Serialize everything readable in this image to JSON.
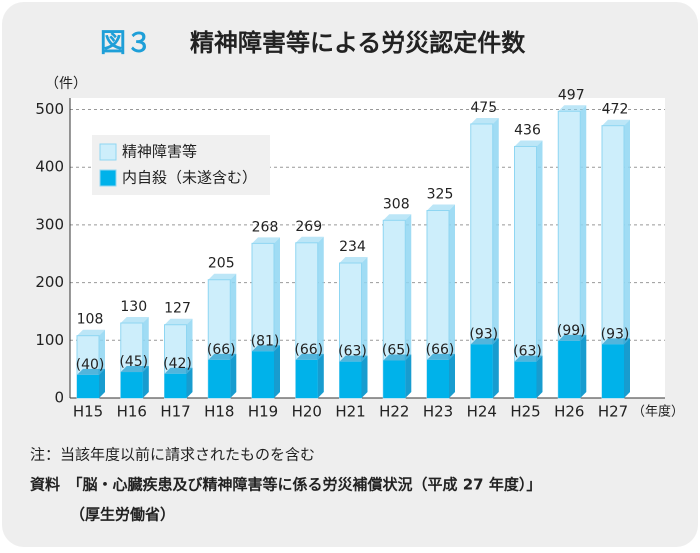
{
  "chart_data": {
    "type": "bar",
    "figure_label": "図３",
    "title": "精神障害等による労災認定件数",
    "y_unit": "（件）",
    "x_unit": "（年度）",
    "categories": [
      "H15",
      "H16",
      "H17",
      "H18",
      "H19",
      "H20",
      "H21",
      "H22",
      "H23",
      "H24",
      "H25",
      "H26",
      "H27"
    ],
    "series": [
      {
        "name": "精神障害等",
        "color": "#cdeefb",
        "values": [
          108,
          130,
          127,
          205,
          268,
          269,
          234,
          308,
          325,
          475,
          436,
          497,
          472
        ]
      },
      {
        "name": "内自殺（未遂含む）",
        "color": "#00b2ea",
        "values": [
          40,
          45,
          42,
          66,
          81,
          66,
          63,
          65,
          66,
          93,
          63,
          99,
          93
        ],
        "value_labels": [
          "(40)",
          "(45)",
          "(42)",
          "(66)",
          "(81)",
          "(66)",
          "(63)",
          "(65)",
          "(66)",
          "(93)",
          "(63)",
          "(99)",
          "(93)"
        ]
      }
    ],
    "ylim": [
      0,
      520
    ],
    "yticks": [
      0,
      100,
      200,
      300,
      400,
      500
    ],
    "grid": true,
    "legend": "upper-left",
    "notes": [
      "注：当該年度以前に請求されたものを含む",
      "資料　「脳・心臓疾患及び精神障害等に係る労災補償状況（平成 27 年度）」",
      "（厚生労働省）"
    ]
  }
}
